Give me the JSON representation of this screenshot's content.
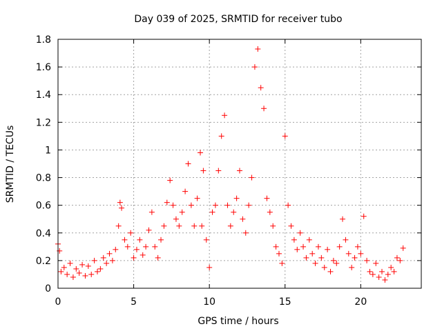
{
  "chart_data": {
    "type": "scatter",
    "title": "Day 039 of 2025, SRMTID for receiver tubo",
    "xlabel": "GPS time / hours",
    "ylabel": "SRMTID / TECUs",
    "xlim": [
      0,
      24
    ],
    "ylim": [
      0,
      1.8
    ],
    "xticks": [
      0,
      5,
      10,
      15,
      20
    ],
    "yticks": [
      0,
      0.2,
      0.4,
      0.6,
      0.8,
      1,
      1.2,
      1.4,
      1.6,
      1.8
    ],
    "xtick_labels": [
      "0",
      "5",
      "10",
      "15",
      "20"
    ],
    "ytick_labels": [
      "0",
      "0.2",
      "0.4",
      "0.6",
      "0.8",
      "1",
      "1.2",
      "1.4",
      "1.6",
      "1.8"
    ],
    "grid": true,
    "marker": "+",
    "color": "#ff0000",
    "series": [
      {
        "name": "SRMTID",
        "x": [
          0.0,
          0.1,
          0.2,
          0.4,
          0.6,
          0.8,
          1.0,
          1.2,
          1.4,
          1.6,
          1.8,
          2.0,
          2.2,
          2.4,
          2.6,
          2.8,
          3.0,
          3.2,
          3.4,
          3.6,
          3.8,
          4.0,
          4.1,
          4.2,
          4.4,
          4.6,
          4.8,
          5.0,
          5.2,
          5.4,
          5.6,
          5.8,
          6.0,
          6.2,
          6.4,
          6.6,
          6.8,
          7.0,
          7.2,
          7.4,
          7.6,
          7.8,
          8.0,
          8.2,
          8.4,
          8.6,
          8.8,
          9.0,
          9.2,
          9.4,
          9.5,
          9.6,
          9.8,
          10.0,
          10.2,
          10.4,
          10.6,
          10.8,
          11.0,
          11.2,
          11.4,
          11.6,
          11.8,
          12.0,
          12.2,
          12.4,
          12.6,
          12.8,
          13.0,
          13.2,
          13.4,
          13.6,
          13.8,
          14.0,
          14.2,
          14.4,
          14.6,
          14.8,
          15.0,
          15.2,
          15.4,
          15.6,
          15.8,
          16.0,
          16.2,
          16.4,
          16.6,
          16.8,
          17.0,
          17.2,
          17.4,
          17.6,
          17.8,
          18.0,
          18.2,
          18.4,
          18.6,
          18.8,
          19.0,
          19.2,
          19.4,
          19.6,
          19.8,
          20.0,
          20.2,
          20.4,
          20.6,
          20.8,
          21.0,
          21.2,
          21.4,
          21.6,
          21.8,
          22.0,
          22.2,
          22.4,
          22.6,
          22.8
        ],
        "y": [
          0.32,
          0.27,
          0.12,
          0.15,
          0.1,
          0.18,
          0.08,
          0.14,
          0.11,
          0.17,
          0.09,
          0.16,
          0.1,
          0.2,
          0.12,
          0.14,
          0.22,
          0.18,
          0.25,
          0.2,
          0.28,
          0.45,
          0.62,
          0.58,
          0.35,
          0.3,
          0.4,
          0.22,
          0.28,
          0.35,
          0.24,
          0.3,
          0.42,
          0.55,
          0.3,
          0.22,
          0.35,
          0.45,
          0.62,
          0.78,
          0.6,
          0.5,
          0.45,
          0.55,
          0.7,
          0.9,
          0.6,
          0.45,
          0.65,
          0.98,
          0.45,
          0.85,
          0.35,
          0.15,
          0.55,
          0.6,
          0.85,
          1.1,
          1.25,
          0.6,
          0.45,
          0.55,
          0.65,
          0.85,
          0.5,
          0.4,
          0.6,
          0.8,
          1.6,
          1.73,
          1.45,
          1.3,
          0.65,
          0.55,
          0.45,
          0.3,
          0.25,
          0.18,
          1.1,
          0.6,
          0.45,
          0.35,
          0.28,
          0.4,
          0.3,
          0.22,
          0.35,
          0.25,
          0.18,
          0.3,
          0.22,
          0.15,
          0.28,
          0.12,
          0.2,
          0.18,
          0.3,
          0.5,
          0.35,
          0.25,
          0.15,
          0.22,
          0.3,
          0.25,
          0.52,
          0.2,
          0.12,
          0.1,
          0.18,
          0.08,
          0.12,
          0.06,
          0.1,
          0.15,
          0.12,
          0.22,
          0.2,
          0.29
        ]
      }
    ]
  }
}
